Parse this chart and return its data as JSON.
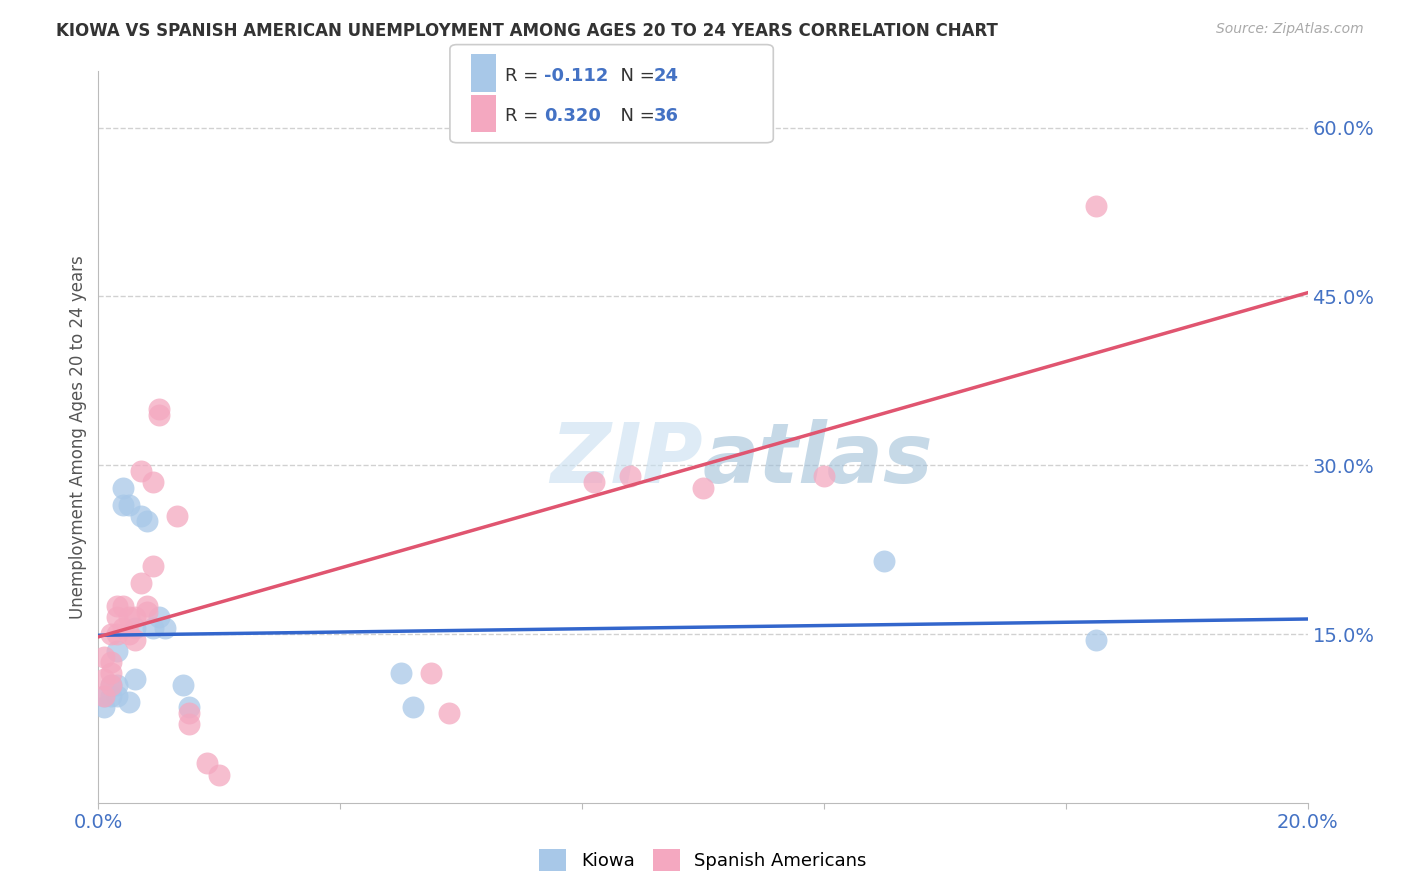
{
  "title": "KIOWA VS SPANISH AMERICAN UNEMPLOYMENT AMONG AGES 20 TO 24 YEARS CORRELATION CHART",
  "source": "Source: ZipAtlas.com",
  "ylabel": "Unemployment Among Ages 20 to 24 years",
  "xlim": [
    0,
    0.2
  ],
  "ylim": [
    0,
    0.65
  ],
  "xticks": [
    0.0,
    0.04,
    0.08,
    0.12,
    0.16,
    0.2
  ],
  "yticks_right": [
    0.15,
    0.3,
    0.45,
    0.6
  ],
  "ytick_right_labels": [
    "15.0%",
    "30.0%",
    "45.0%",
    "60.0%"
  ],
  "kiowa_R": -0.112,
  "kiowa_N": 24,
  "spanish_R": 0.32,
  "spanish_N": 36,
  "kiowa_color": "#a8c8e8",
  "spanish_color": "#f4a8c0",
  "kiowa_line_color": "#3366cc",
  "spanish_line_color": "#e05570",
  "watermark": "ZIPatlas",
  "kiowa_x": [
    0.001,
    0.001,
    0.002,
    0.002,
    0.003,
    0.003,
    0.003,
    0.004,
    0.004,
    0.005,
    0.005,
    0.006,
    0.006,
    0.007,
    0.008,
    0.009,
    0.01,
    0.011,
    0.014,
    0.015,
    0.05,
    0.052,
    0.13,
    0.165
  ],
  "kiowa_y": [
    0.085,
    0.095,
    0.095,
    0.105,
    0.105,
    0.095,
    0.135,
    0.265,
    0.28,
    0.265,
    0.09,
    0.155,
    0.11,
    0.255,
    0.25,
    0.155,
    0.165,
    0.155,
    0.105,
    0.085,
    0.115,
    0.085,
    0.215,
    0.145
  ],
  "spanish_x": [
    0.001,
    0.001,
    0.001,
    0.002,
    0.002,
    0.002,
    0.002,
    0.003,
    0.003,
    0.003,
    0.004,
    0.004,
    0.005,
    0.005,
    0.006,
    0.006,
    0.007,
    0.007,
    0.008,
    0.008,
    0.009,
    0.009,
    0.01,
    0.01,
    0.013,
    0.015,
    0.015,
    0.018,
    0.02,
    0.055,
    0.058,
    0.082,
    0.088,
    0.1,
    0.12,
    0.165
  ],
  "spanish_y": [
    0.095,
    0.11,
    0.13,
    0.105,
    0.115,
    0.125,
    0.15,
    0.15,
    0.165,
    0.175,
    0.155,
    0.175,
    0.15,
    0.165,
    0.145,
    0.165,
    0.195,
    0.295,
    0.17,
    0.175,
    0.21,
    0.285,
    0.345,
    0.35,
    0.255,
    0.08,
    0.07,
    0.035,
    0.025,
    0.115,
    0.08,
    0.285,
    0.29,
    0.28,
    0.29,
    0.53
  ],
  "dashed_line_y": 0.6,
  "grid_lines": [
    0.15,
    0.3,
    0.45
  ]
}
